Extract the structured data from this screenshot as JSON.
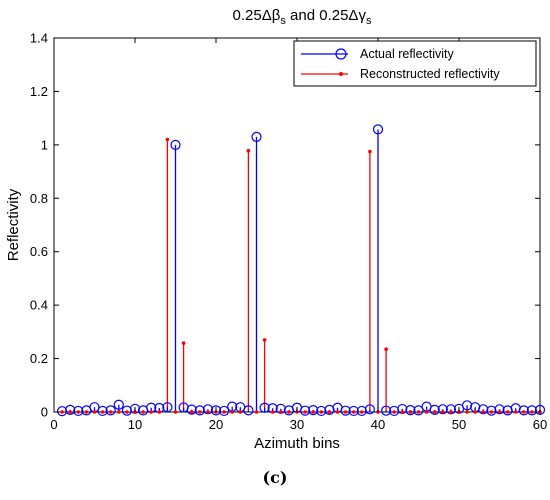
{
  "chart_data": {
    "type": "stem",
    "title_main": "0.25Δβ",
    "title_sub1": "s",
    "title_mid": " and 0.25Δγ",
    "title_sub2": "s",
    "xlabel": "Azimuth bins",
    "ylabel": "Reflectivity",
    "xlim": [
      0,
      60
    ],
    "ylim": [
      0,
      1.4
    ],
    "xticks": [
      0,
      10,
      20,
      30,
      40,
      50,
      60
    ],
    "yticks": [
      0,
      0.2,
      0.4,
      0.6,
      0.8,
      1,
      1.2,
      1.4
    ],
    "ytick_labels": [
      "0",
      "0.2",
      "0.4",
      "0.6",
      "0.8",
      "1",
      "1.2",
      "1.4"
    ],
    "grid": false,
    "legend_position": "top-right",
    "series": [
      {
        "name": "Actual reflectivity",
        "color": "#0000ff",
        "marker": "circle",
        "x": [
          1,
          2,
          3,
          4,
          5,
          6,
          7,
          8,
          9,
          10,
          11,
          12,
          13,
          14,
          15,
          16,
          17,
          18,
          19,
          20,
          21,
          22,
          23,
          24,
          25,
          26,
          27,
          28,
          29,
          30,
          31,
          32,
          33,
          34,
          35,
          36,
          37,
          38,
          39,
          40,
          41,
          42,
          43,
          44,
          45,
          46,
          47,
          48,
          49,
          50,
          51,
          52,
          53,
          54,
          55,
          56,
          57,
          58,
          59,
          60
        ],
        "y": [
          0.003,
          0.008,
          0.004,
          0.006,
          0.018,
          0.004,
          0.006,
          0.027,
          0.005,
          0.012,
          0.006,
          0.016,
          0.015,
          0.018,
          1.0,
          0.017,
          0.009,
          0.006,
          0.01,
          0.006,
          0.004,
          0.02,
          0.018,
          0.006,
          1.03,
          0.016,
          0.014,
          0.012,
          0.006,
          0.016,
          0.005,
          0.007,
          0.004,
          0.008,
          0.016,
          0.005,
          0.004,
          0.004,
          0.01,
          1.058,
          0.005,
          0.004,
          0.011,
          0.007,
          0.006,
          0.02,
          0.008,
          0.01,
          0.01,
          0.012,
          0.025,
          0.018,
          0.01,
          0.005,
          0.01,
          0.006,
          0.014,
          0.006,
          0.006,
          0.008
        ]
      },
      {
        "name": "Reconstructed reflectivity",
        "color": "#ff0000",
        "marker": "dot",
        "x": [
          1,
          2,
          3,
          4,
          5,
          6,
          7,
          8,
          9,
          10,
          11,
          12,
          13,
          14,
          15,
          16,
          17,
          18,
          19,
          20,
          21,
          22,
          23,
          24,
          25,
          26,
          27,
          28,
          29,
          30,
          31,
          32,
          33,
          34,
          35,
          36,
          37,
          38,
          39,
          40,
          41,
          42,
          43,
          44,
          45,
          46,
          47,
          48,
          49,
          50,
          51,
          52,
          53,
          54,
          55,
          56,
          57,
          58,
          59,
          60
        ],
        "y": [
          0,
          0,
          0,
          0,
          0,
          0,
          0,
          0,
          0,
          0,
          0,
          0,
          0,
          1.02,
          0,
          0.258,
          0,
          0,
          0,
          0,
          0,
          0,
          0,
          0.978,
          0,
          0.27,
          0,
          0,
          0,
          0,
          0,
          0,
          0,
          0,
          0,
          0,
          0,
          0,
          0.975,
          0,
          0.235,
          0,
          0,
          0,
          0,
          0,
          0,
          0,
          0,
          0,
          0,
          0,
          0,
          0,
          0,
          0,
          0,
          0,
          0,
          0
        ]
      }
    ]
  },
  "caption": "(c)"
}
